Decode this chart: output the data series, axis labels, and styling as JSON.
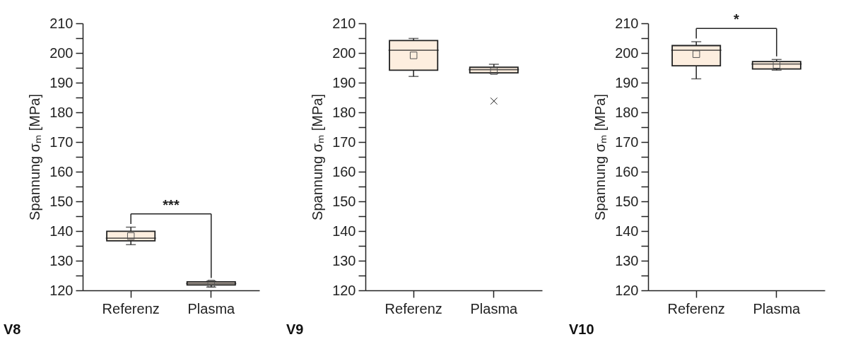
{
  "chart_data": [
    {
      "type": "box",
      "title": "V8",
      "ylabel": "Spannung σₘ [MPa]",
      "categories": [
        "Referenz",
        "Plasma"
      ],
      "ylim": [
        120,
        210
      ],
      "yticks": [
        120,
        {
          "value": 125,
          "label": null
        },
        130,
        {
          "value": 135,
          "label": null
        },
        140,
        {
          "value": 145,
          "label": null
        },
        150,
        {
          "value": 155,
          "label": null
        },
        160,
        {
          "value": 165,
          "label": null
        },
        170,
        {
          "value": 175,
          "label": null
        },
        180,
        {
          "value": 185,
          "label": null
        },
        190,
        {
          "value": 195,
          "label": null
        },
        200,
        {
          "value": 205,
          "label": null
        },
        210
      ],
      "marker": "square",
      "grid": false,
      "annotations": [
        "***"
      ],
      "series": [
        {
          "color": "#fdeedf",
          "boxes": [
            {
              "low": 135.4,
              "q1": 136.7,
              "median": 137.6,
              "q3": 139.9,
              "high": 141.3,
              "mean": 138.3
            },
            {
              "low": 121.1,
              "q1": 121.8,
              "median": 122.3,
              "q3": 122.9,
              "high": 123.1,
              "mean": 122.3
            }
          ]
        }
      ]
    },
    {
      "type": "box",
      "title": "V9",
      "ylabel": "Spannung σₘ [MPa]",
      "categories": [
        "Referenz",
        "Plasma"
      ],
      "ylim": [
        120,
        210
      ],
      "yticks": [
        120,
        {
          "value": 125,
          "label": null
        },
        130,
        {
          "value": 135,
          "label": null
        },
        140,
        {
          "value": 145,
          "label": null
        },
        150,
        {
          "value": 155,
          "label": null
        },
        160,
        {
          "value": 165,
          "label": null
        },
        170,
        {
          "value": 175,
          "label": null
        },
        180,
        {
          "value": 185,
          "label": null
        },
        190,
        {
          "value": 195,
          "label": null
        },
        200,
        {
          "value": 205,
          "label": null
        },
        210
      ],
      "marker": "square",
      "grid": false,
      "series": [
        {
          "color": "#fdeedf",
          "boxes": [
            {
              "low": 192.1,
              "q1": 194.2,
              "median": 200.9,
              "q3": 204.2,
              "high": 204.9,
              "mean": 199.2
            },
            {
              "low": 193.2,
              "q1": 193.3,
              "median": 194.4,
              "q3": 195.2,
              "high": 196.2,
              "mean": 193.9,
              "outliers": [
                183.8
              ]
            }
          ]
        }
      ]
    },
    {
      "type": "box",
      "title": "V10",
      "ylabel": "Spannung σₘ [MPa]",
      "categories": [
        "Referenz",
        "Plasma"
      ],
      "ylim": [
        120,
        210
      ],
      "yticks": [
        120,
        {
          "value": 125,
          "label": null
        },
        130,
        {
          "value": 135,
          "label": null
        },
        140,
        {
          "value": 145,
          "label": null
        },
        150,
        {
          "value": 155,
          "label": null
        },
        160,
        {
          "value": 165,
          "label": null
        },
        170,
        {
          "value": 175,
          "label": null
        },
        180,
        {
          "value": 185,
          "label": null
        },
        190,
        {
          "value": 195,
          "label": null
        },
        200,
        {
          "value": 205,
          "label": null
        },
        210
      ],
      "marker": "square",
      "grid": false,
      "annotations": [
        "*"
      ],
      "series": [
        {
          "color": "#fdeedf",
          "boxes": [
            {
              "low": 191.3,
              "q1": 195.7,
              "median": 200.9,
              "q3": 202.5,
              "high": 203.8,
              "mean": 199.6
            },
            {
              "low": 194.2,
              "q1": 194.6,
              "median": 196.3,
              "q3": 197.1,
              "high": 197.8,
              "mean": 196.0
            }
          ]
        }
      ]
    }
  ]
}
